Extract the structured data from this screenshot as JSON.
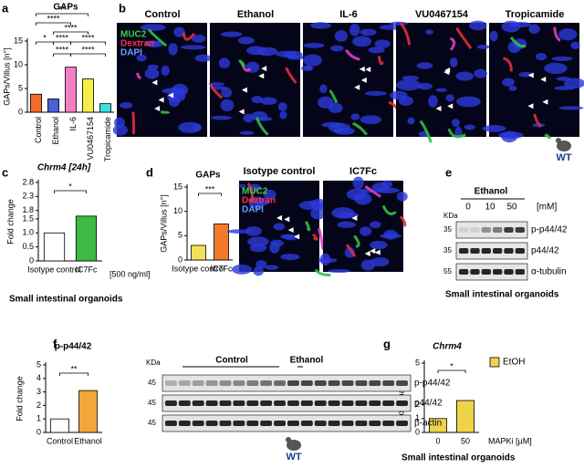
{
  "panel_labels": [
    "a",
    "b",
    "c",
    "d",
    "e",
    "f",
    "g"
  ],
  "chart_data": [
    {
      "type": "bar",
      "title": "GAPs",
      "y_label": "GAPs/Villus [n°]",
      "categories": [
        "Control",
        "Ethanol",
        "IL-6",
        "VU0467154",
        "Tropicamide"
      ],
      "values": [
        3.8,
        2.8,
        9.5,
        7.0,
        1.8
      ],
      "colors": [
        "#f26b2a",
        "#4b5fd6",
        "#f27fc2",
        "#f2ef4a",
        "#3fe0e0"
      ],
      "ylim": [
        0,
        15
      ],
      "yticks": [
        0,
        5,
        10,
        15
      ],
      "annotations": [
        "**",
        "****",
        "****",
        "*",
        "****",
        "****",
        "****",
        "****"
      ]
    },
    {
      "type": "bar",
      "title": "Chrm4 [24h]",
      "y_label": "Fold change",
      "categories": [
        "Isotype control",
        "IC7Fc"
      ],
      "values": [
        1.0,
        1.6
      ],
      "colors": [
        "#ffffff",
        "#3dbb45"
      ],
      "ylim": [
        0,
        2.8
      ],
      "yticks": [
        0,
        0.5,
        {
          "value": 1.0,
          "label": "1.0"
        },
        1.5,
        1.8,
        2.3,
        2.8
      ],
      "annotations": [
        "*"
      ],
      "note": "[500 ng/ml]",
      "footer": "Small intestinal organoids"
    },
    {
      "type": "bar",
      "title": "GAPs",
      "y_label": "GAPs/Villus [n°]",
      "categories": [
        "Isotype control",
        "IC7Fc"
      ],
      "values": [
        3.0,
        7.4
      ],
      "colors": [
        "#f3df58",
        "#f0792c"
      ],
      "ylim": [
        0,
        15
      ],
      "yticks": [
        0,
        5,
        10,
        15
      ],
      "annotations": [
        "***"
      ]
    },
    {
      "type": "bar",
      "title": "p-p44/42",
      "y_label": "Fold change",
      "categories": [
        "Control",
        "Ethanol"
      ],
      "values": [
        1.0,
        3.1
      ],
      "colors": [
        "#ffffff",
        "#f5a63a"
      ],
      "ylim": [
        0,
        5
      ],
      "yticks": [
        0,
        1,
        2,
        3,
        4,
        5
      ],
      "annotations": [
        "**"
      ]
    },
    {
      "type": "bar",
      "title": "Chrm4",
      "y_label": "Fold change",
      "x_label": "MAPKi [µM]",
      "categories": [
        "0",
        "50"
      ],
      "series": [
        {
          "name": "EtOH",
          "color": "#efd44a",
          "values": [
            1.0,
            2.3
          ]
        }
      ],
      "ylim": [
        0,
        5
      ],
      "yticks": [
        0,
        1,
        2,
        5
      ],
      "annotations": [
        "*"
      ],
      "footer": "Small intestinal organoids"
    }
  ],
  "images_b": {
    "titles": [
      "Control",
      "Ethanol",
      "IL-6",
      "VU0467154",
      "Tropicamide"
    ],
    "legend": [
      "MUC2",
      "Dextran",
      "DAPI"
    ],
    "badge": "WT"
  },
  "images_d": {
    "titles": [
      "Isotype control",
      "IC7Fc"
    ],
    "legend": [
      "MUC2",
      "Dextran",
      "DAPI"
    ]
  },
  "blot_e": {
    "title": "Ethanol",
    "lanes": [
      "0",
      "10",
      "50"
    ],
    "unit": "[mM]",
    "kda_label": "KDa",
    "kda": [
      "35",
      "35",
      "55"
    ],
    "bands": [
      "p-p44/42",
      "p44/42",
      "α-tubulin"
    ],
    "footer": "Small intestinal organoids"
  },
  "blot_f": {
    "groups": [
      "Control",
      "Ethanol"
    ],
    "kda_label": "KDa",
    "kda": [
      "45",
      "45",
      "45"
    ],
    "bands": [
      "p-p44/42",
      "p44/42",
      "β-actin"
    ],
    "badge": "WT"
  }
}
